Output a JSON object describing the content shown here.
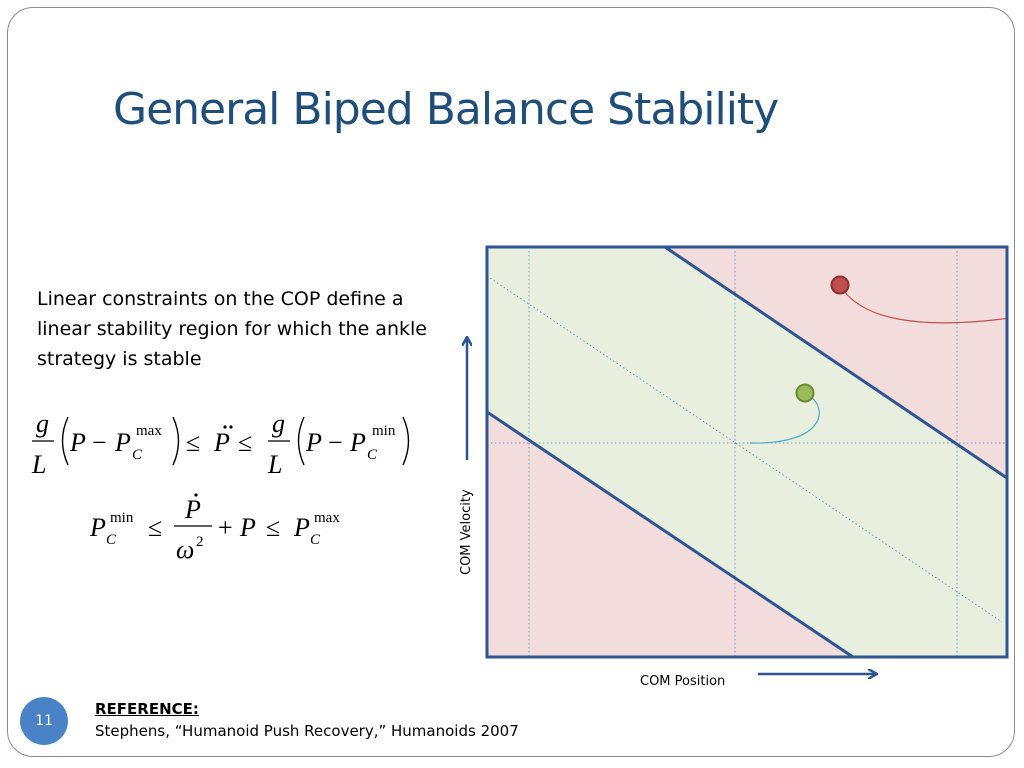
{
  "slide": {
    "title": "General Biped Balance Stability",
    "body_text": "Linear constraints on the COP define a linear stability region for which the ankle strategy is stable",
    "page_number": "11"
  },
  "reference": {
    "heading": "REFERENCE:",
    "citation": "Stephens, “Humanoid Push Recovery,” Humanoids 2007"
  },
  "equations": {
    "eq1": {
      "g": "g",
      "L": "L",
      "P": "P",
      "minus": "−",
      "C": "C",
      "max": "max",
      "min": "min",
      "leq": "≤"
    },
    "eq2": {
      "omega": "ω",
      "two": "2",
      "plus": "+"
    }
  },
  "diagram": {
    "x_axis_label": "COM Position",
    "y_axis_label": "COM Velocity",
    "colors": {
      "stable_region": "#e9efdf",
      "unstable_region": "#f2dcdc",
      "boundary_line": "#2e5590",
      "grid_line": "#4a7fc0",
      "unstable_point": "#c0504d",
      "stable_point": "#9bbb59",
      "stable_trajectory": "#4bacc6",
      "unstable_trajectory": "#c0504d"
    },
    "points": [
      {
        "name": "unstable-state",
        "color": "#c0504d"
      },
      {
        "name": "stable-state",
        "color": "#9bbb59"
      }
    ]
  }
}
